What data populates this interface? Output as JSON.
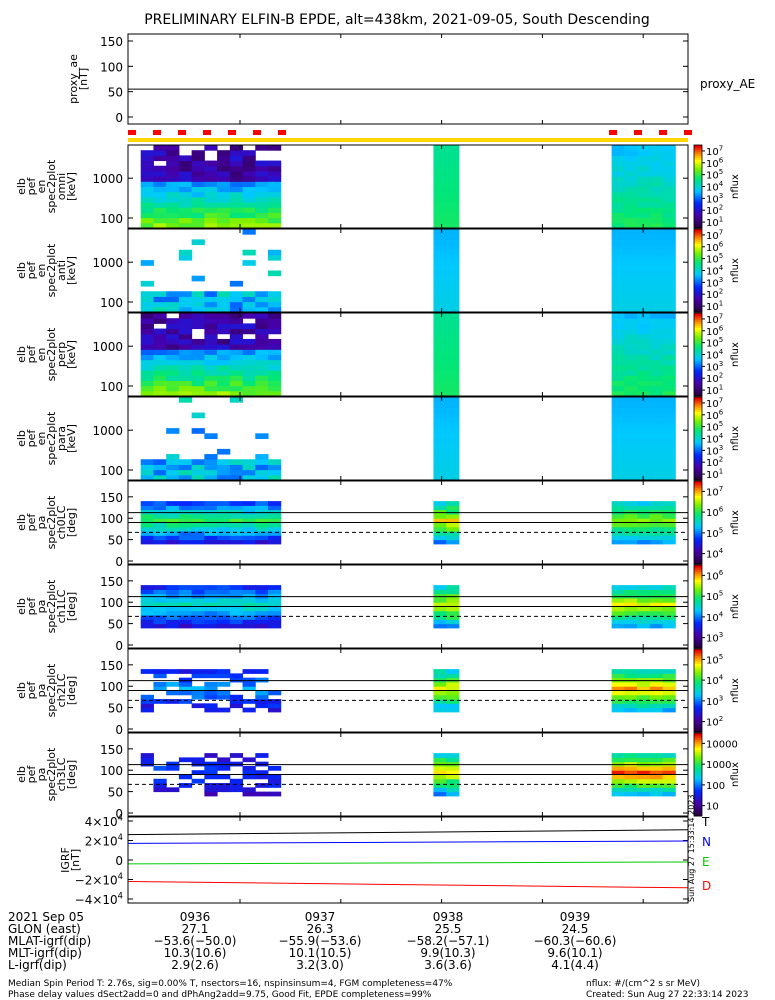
{
  "title": "PRELIMINARY ELFIN-B EPDE, alt=438km, 2021-09-05, South Descending",
  "colors": {
    "axis": "#000000",
    "sector_marks": "#ff0000",
    "sector_bar": "#ffd700",
    "igrf_T": "#000000",
    "igrf_N": "#0000ff",
    "igrf_E": "#00cc00",
    "igrf_D": "#ff0000"
  },
  "chart_data": [
    {
      "type": "line",
      "name": "proxy_ae",
      "ylabel_lines": [
        "proxy_ae",
        "[nT]"
      ],
      "ylim": [
        0,
        150
      ],
      "ytick_labels": [
        "150",
        "100",
        "50",
        "0"
      ],
      "legend": "proxy_AE",
      "value_flat": 55
    },
    {
      "type": "heatmap",
      "ylabel_lines": [
        "elb",
        "pef",
        "en",
        "spec2plot",
        "omni",
        "[keV]"
      ],
      "ytick_labels": [
        "1000",
        "100"
      ],
      "y_scale": "log",
      "colorbar_label": "nflux",
      "colorbar_ticks": [
        "10^1",
        "10^2",
        "10^3",
        "10^4",
        "10^5",
        "10^6",
        "10^7"
      ]
    },
    {
      "type": "heatmap",
      "ylabel_lines": [
        "elb",
        "pef",
        "en",
        "spec2plot",
        "anti",
        "[keV]"
      ],
      "ytick_labels": [
        "1000",
        "100"
      ],
      "y_scale": "log",
      "colorbar_label": "nflux",
      "colorbar_ticks": [
        "10^1",
        "10^2",
        "10^3",
        "10^4",
        "10^5",
        "10^6",
        "10^7"
      ]
    },
    {
      "type": "heatmap",
      "ylabel_lines": [
        "elb",
        "pef",
        "en",
        "spec2plot",
        "perp",
        "[keV]"
      ],
      "ytick_labels": [
        "1000",
        "100"
      ],
      "y_scale": "log",
      "colorbar_label": "nflux",
      "colorbar_ticks": [
        "10^1",
        "10^2",
        "10^3",
        "10^4",
        "10^5",
        "10^6",
        "10^7"
      ]
    },
    {
      "type": "heatmap",
      "ylabel_lines": [
        "elb",
        "pef",
        "en",
        "spec2plot",
        "para",
        "[keV]"
      ],
      "ytick_labels": [
        "1000",
        "100"
      ],
      "y_scale": "log",
      "colorbar_label": "nflux",
      "colorbar_ticks": [
        "10^1",
        "10^2",
        "10^3",
        "10^4",
        "10^5",
        "10^6",
        "10^7"
      ]
    },
    {
      "type": "heatmap",
      "ylabel_lines": [
        "elb",
        "pef",
        "pa",
        "spec2plot",
        "ch0LC",
        "[deg]"
      ],
      "ytick_labels": [
        "150",
        "100",
        "50",
        "0"
      ],
      "ylim": [
        0,
        180
      ],
      "colorbar_label": "nflux",
      "colorbar_ticks": [
        "10^4",
        "10^5",
        "10^6",
        "10^7"
      ]
    },
    {
      "type": "heatmap",
      "ylabel_lines": [
        "elb",
        "pef",
        "pa",
        "spec2plot",
        "ch1LC",
        "[deg]"
      ],
      "ytick_labels": [
        "150",
        "100",
        "50",
        "0"
      ],
      "ylim": [
        0,
        180
      ],
      "colorbar_label": "nflux",
      "colorbar_ticks": [
        "10^3",
        "10^4",
        "10^5",
        "10^6"
      ]
    },
    {
      "type": "heatmap",
      "ylabel_lines": [
        "elb",
        "pef",
        "pa",
        "spec2plot",
        "ch2LC",
        "[deg]"
      ],
      "ytick_labels": [
        "150",
        "100",
        "50",
        "0"
      ],
      "ylim": [
        0,
        180
      ],
      "colorbar_label": "nflux",
      "colorbar_ticks": [
        "10^2",
        "10^3",
        "10^4",
        "10^5"
      ]
    },
    {
      "type": "heatmap",
      "ylabel_lines": [
        "elb",
        "pef",
        "pa",
        "spec2plot",
        "ch3LC",
        "[deg]"
      ],
      "ytick_labels": [
        "150",
        "100",
        "50",
        "0"
      ],
      "ylim": [
        0,
        180
      ],
      "colorbar_label": "nflux",
      "colorbar_ticks": [
        "10",
        "100",
        "1000",
        "10000"
      ]
    },
    {
      "type": "line",
      "ylabel_lines": [
        "IGRF",
        "[nT]"
      ],
      "ytick_labels": [
        "4×10^4",
        "2×10^4",
        "0",
        "−2×10^4",
        "−4×10^4"
      ],
      "ylim": [
        -40000,
        40000
      ],
      "series": [
        {
          "name": "T",
          "color": "#000000",
          "start": 26000,
          "end": 31000
        },
        {
          "name": "N",
          "color": "#0000ff",
          "start": 17000,
          "end": 19500
        },
        {
          "name": "E",
          "color": "#00cc00",
          "start": -4000,
          "end": -2000
        },
        {
          "name": "D",
          "color": "#ff0000",
          "start": -22000,
          "end": -28500
        }
      ],
      "side_text": "Sun Aug 27 15:33:14 2023"
    }
  ],
  "footer": {
    "rows": [
      {
        "label": "2021 Sep 05",
        "values": [
          "0936",
          "0937",
          "0938",
          "0939"
        ]
      },
      {
        "label": "GLON (east)",
        "values": [
          "27.1",
          "26.3",
          "25.5",
          "24.5"
        ]
      },
      {
        "label": "MLAT-igrf(dip)",
        "values": [
          "−53.6(−50.0)",
          "−55.9(−53.6)",
          "−58.2(−57.1)",
          "−60.3(−60.6)"
        ]
      },
      {
        "label": "MLT-igrf(dip)",
        "values": [
          "10.3(10.6)",
          "10.1(10.5)",
          "9.9(10.3)",
          "9.6(10.1)"
        ]
      },
      {
        "label": "L-igrf(dip)",
        "values": [
          "2.9(2.6)",
          "3.2(3.0)",
          "3.6(3.6)",
          "4.1(4.4)"
        ]
      }
    ],
    "note1": "Median Spin Period T: 2.76s, sig=0.00% T, nsectors=16, nspinsinsum=4, FGM completeness=47%",
    "note2": "Phase delay values dSect2add=0 and dPhAng2add=9.75, Good Fit, EPDE completeness=99%",
    "flux_units": "nflux: #/(cm^2 s sr MeV)",
    "created": "Created: Sun Aug 27 22:33:14 2023"
  }
}
